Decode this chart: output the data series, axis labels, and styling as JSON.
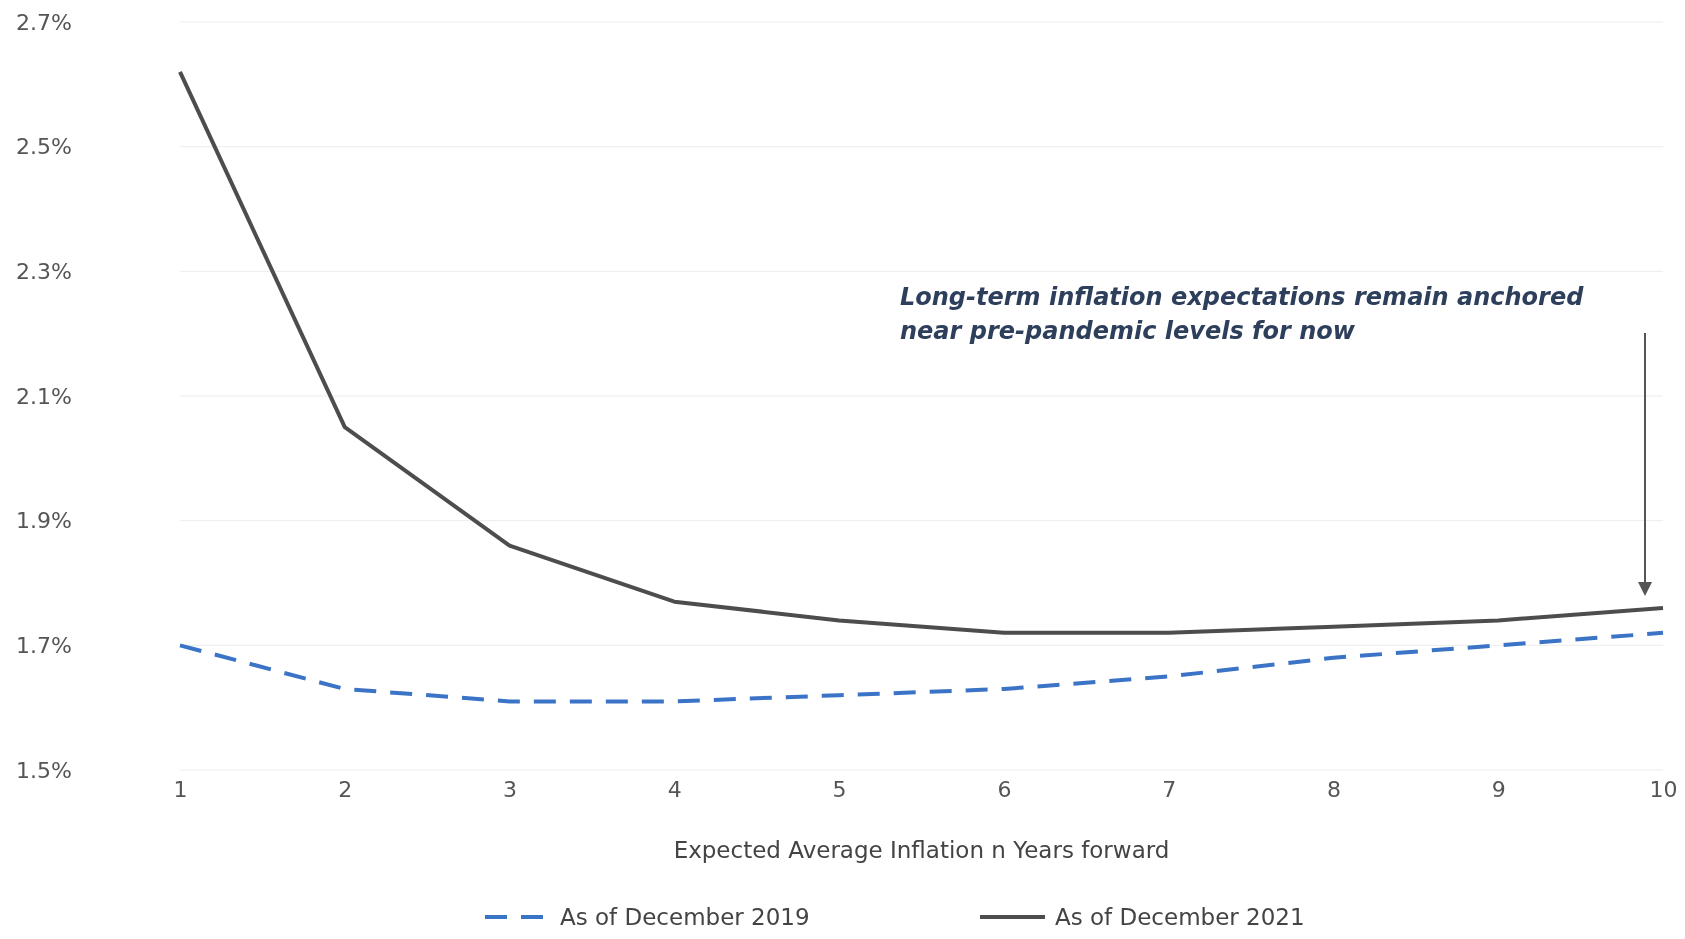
{
  "chart_data": {
    "type": "line",
    "xlabel": "Expected Average Inflation n Years forward",
    "x": [
      1,
      2,
      3,
      4,
      5,
      6,
      7,
      8,
      9,
      10
    ],
    "xlim": [
      1,
      10
    ],
    "xticks": [
      1,
      2,
      3,
      4,
      5,
      6,
      7,
      8,
      9,
      10
    ],
    "ylim": [
      1.5,
      2.7
    ],
    "yticks": [
      {
        "value": 1.5,
        "label": "1.5%"
      },
      {
        "value": 1.7,
        "label": "1.7%"
      },
      {
        "value": 1.9,
        "label": "1.9%"
      },
      {
        "value": 2.1,
        "label": "2.1%"
      },
      {
        "value": 2.3,
        "label": "2.3%"
      },
      {
        "value": 2.5,
        "label": "2.5%"
      },
      {
        "value": 2.7,
        "label": "2.7%"
      }
    ],
    "grid": "y",
    "legend": "bottom",
    "marker": "none",
    "series": [
      {
        "name": "As of December 2019",
        "color": "#3b73c6",
        "line_style": "dashed",
        "values": [
          1.7,
          1.63,
          1.61,
          1.61,
          1.62,
          1.63,
          1.65,
          1.68,
          1.7,
          1.72
        ]
      },
      {
        "name": "As of December 2021",
        "color": "#4d4d4d",
        "line_style": "solid",
        "values": [
          2.62,
          2.05,
          1.86,
          1.77,
          1.74,
          1.72,
          1.72,
          1.73,
          1.74,
          1.76
        ]
      }
    ],
    "annotations": [
      "Long-term inflation expectations remain anchored near pre-pandemic levels for now"
    ]
  }
}
